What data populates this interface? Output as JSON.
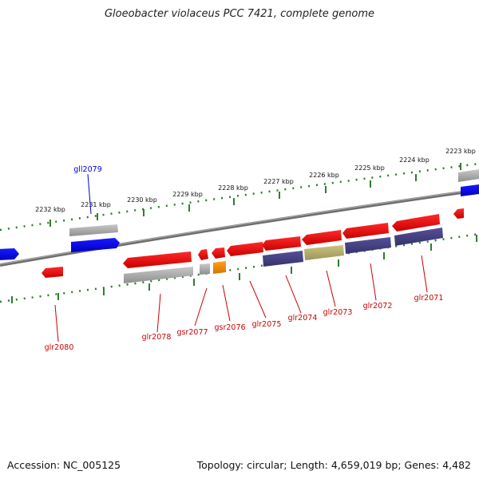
{
  "header": {
    "title": "Gloeobacter violaceus PCC 7421, complete genome"
  },
  "footer": {
    "accession": "Accession: NC_005125",
    "summary": "Topology: circular; Length: 4,659,019 bp; Genes: 4,482"
  },
  "colors": {
    "backbone": "#7a7a7a",
    "tick_major": "#2f7d2f",
    "tick_minor": "#2f7d2f",
    "label_red": "#cc0000",
    "label_blue": "#0000cc",
    "gene_red": "#e00000",
    "gene_grey": "#a8a8a8",
    "gene_blue": "#0000ee",
    "gene_navy": "#44407a",
    "gene_khaki": "#b7b06a",
    "gene_orange": "#f08c00"
  },
  "ruler": {
    "major_ticks": [
      "2232 kbp",
      "2231 kbp",
      "2230 kbp",
      "2229 kbp",
      "2228 kbp",
      "2227 kbp",
      "2226 kbp",
      "2225 kbp",
      "2224 kbp",
      "2223 kbp"
    ]
  },
  "genes": [
    {
      "name": "gll2079",
      "color": "gene_blue"
    },
    {
      "name": "glr2080",
      "color": "gene_red"
    },
    {
      "name": "glr2078",
      "color": "gene_red"
    },
    {
      "name": "gsr2077",
      "color": "gene_red"
    },
    {
      "name": "gsr2076",
      "color": "gene_red"
    },
    {
      "name": "glr2075",
      "color": "gene_red"
    },
    {
      "name": "glr2074",
      "color": "gene_red"
    },
    {
      "name": "glr2073",
      "color": "gene_red"
    },
    {
      "name": "glr2072",
      "color": "gene_red"
    },
    {
      "name": "glr2071",
      "color": "gene_red"
    }
  ]
}
